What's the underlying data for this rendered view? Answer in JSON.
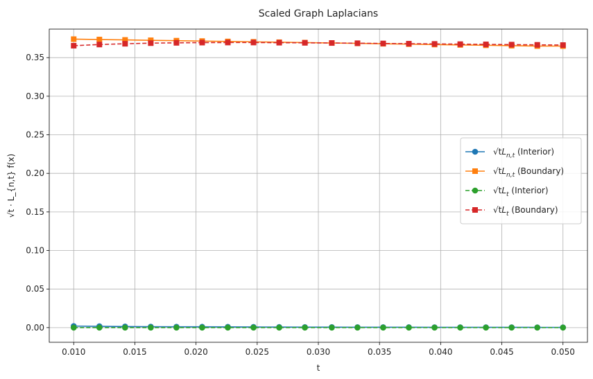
{
  "chart_data": {
    "type": "line",
    "title": "Scaled Graph Laplacians",
    "xlabel": "t",
    "ylabel": "√t · L_{n,t} f(x)",
    "xlim": [
      0.008,
      0.052
    ],
    "ylim": [
      -0.019,
      0.387
    ],
    "grid": true,
    "legend_placement": "center-right",
    "x_ticks": [
      "0.010",
      "0.015",
      "0.020",
      "0.025",
      "0.030",
      "0.035",
      "0.040",
      "0.045",
      "0.050"
    ],
    "y_ticks": [
      "0.00",
      "0.05",
      "0.10",
      "0.15",
      "0.20",
      "0.25",
      "0.30",
      "0.35"
    ],
    "x": [
      0.01,
      0.0121,
      0.0142,
      0.0163,
      0.0184,
      0.0205,
      0.0226,
      0.0247,
      0.0268,
      0.0289,
      0.0311,
      0.0332,
      0.0353,
      0.0374,
      0.0395,
      0.0416,
      0.0437,
      0.0458,
      0.0479,
      0.05
    ],
    "series": [
      {
        "name": "L_{n,t} (Interior)",
        "prefix": "√t",
        "symbol": "L",
        "subscript": "n,t",
        "suffix": " (Interior)",
        "color": "#1f77b4",
        "marker": "circle",
        "dash": "solid",
        "values": [
          0.002,
          0.0017,
          0.0014,
          0.0012,
          0.0011,
          0.001,
          0.0009,
          0.0008,
          0.0007,
          0.0006,
          0.0006,
          0.0005,
          0.0005,
          0.0005,
          0.0004,
          0.0004,
          0.0004,
          0.0004,
          0.0003,
          0.0003
        ]
      },
      {
        "name": "L_{n,t} (Boundary)",
        "prefix": "√t",
        "symbol": "L",
        "subscript": "n,t",
        "suffix": " (Boundary)",
        "color": "#ff7f0e",
        "marker": "square",
        "dash": "solid",
        "values": [
          0.374,
          0.3735,
          0.373,
          0.3725,
          0.372,
          0.3715,
          0.371,
          0.3705,
          0.37,
          0.3695,
          0.369,
          0.3685,
          0.368,
          0.3675,
          0.367,
          0.3665,
          0.366,
          0.3655,
          0.365,
          0.365
        ]
      },
      {
        "name": "L_t (Interior)",
        "prefix": "√t",
        "symbol": "L",
        "subscript": "t",
        "suffix": " (Interior)",
        "color": "#2ca02c",
        "marker": "circle",
        "dash": "dashed",
        "values": [
          0.0,
          0.0,
          0.0,
          0.0,
          0.0,
          0.0,
          0.0,
          0.0,
          0.0,
          0.0,
          0.0,
          0.0,
          0.0,
          0.0,
          0.0,
          0.0,
          0.0,
          0.0,
          0.0,
          0.0
        ]
      },
      {
        "name": "L_t (Boundary)",
        "prefix": "√t",
        "symbol": "L",
        "subscript": "t",
        "suffix": " (Boundary)",
        "color": "#d62728",
        "marker": "square",
        "dash": "dashed",
        "values": [
          0.3655,
          0.367,
          0.368,
          0.3688,
          0.3692,
          0.3695,
          0.3696,
          0.3696,
          0.3694,
          0.3692,
          0.369,
          0.3687,
          0.3684,
          0.3681,
          0.3678,
          0.3675,
          0.3672,
          0.3669,
          0.3666,
          0.3663
        ]
      }
    ]
  }
}
